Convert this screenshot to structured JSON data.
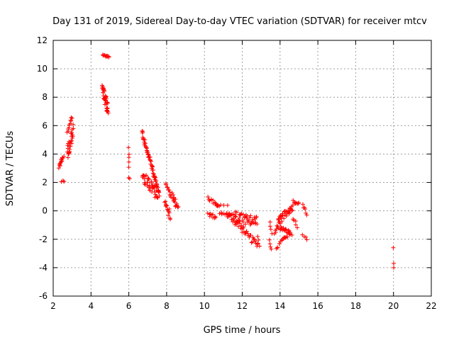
{
  "chart_data": {
    "type": "scatter",
    "title": "Day 131 of 2019, Sidereal Day-to-day VTEC variation (SDTVAR) for receiver mtcv",
    "xlabel": "GPS time / hours",
    "ylabel": "SDTVAR / TECUs",
    "xlim": [
      2,
      22
    ],
    "ylim": [
      -6,
      12
    ],
    "xticks": [
      2,
      4,
      6,
      8,
      10,
      12,
      14,
      16,
      18,
      20,
      22
    ],
    "yticks": [
      -6,
      -4,
      -2,
      0,
      2,
      4,
      6,
      8,
      10,
      12
    ],
    "grid": true,
    "marker": "+",
    "color": "#ff0000",
    "series": [
      {
        "name": "SDTVAR",
        "segments": [
          {
            "x0": 2.3,
            "x1": 2.55,
            "y0": 3.1,
            "y1": 3.8,
            "n": 14,
            "j": 0.15
          },
          {
            "x0": 2.45,
            "x1": 2.55,
            "y0": 2.1,
            "y1": 2.1,
            "n": 3,
            "j": 0.05
          },
          {
            "x0": 2.75,
            "x1": 3.05,
            "y0": 4.0,
            "y1": 5.6,
            "n": 28,
            "j": 0.5
          },
          {
            "x0": 2.75,
            "x1": 3.0,
            "y0": 5.6,
            "y1": 6.6,
            "n": 10,
            "j": 0.1
          },
          {
            "x0": 4.65,
            "x1": 4.95,
            "y0": 11.0,
            "y1": 10.8,
            "n": 12,
            "j": 0.05
          },
          {
            "x0": 4.6,
            "x1": 4.9,
            "y0": 8.7,
            "y1": 7.0,
            "n": 38,
            "j": 0.4
          },
          {
            "x0": 6.0,
            "x1": 6.0,
            "y0": 4.4,
            "y1": 3.0,
            "n": 5,
            "j": 0.1
          },
          {
            "x0": 6.0,
            "x1": 6.05,
            "y0": 2.3,
            "y1": 2.3,
            "n": 2,
            "j": 0.05
          },
          {
            "x0": 6.7,
            "x1": 7.6,
            "y0": 5.5,
            "y1": 1.2,
            "n": 55,
            "j": 0.2
          },
          {
            "x0": 6.7,
            "x1": 7.6,
            "y0": 2.5,
            "y1": 1.0,
            "n": 45,
            "j": 0.4
          },
          {
            "x0": 7.9,
            "x1": 8.2,
            "y0": 0.5,
            "y1": -0.3,
            "n": 14,
            "j": 0.3
          },
          {
            "x0": 7.95,
            "x1": 8.25,
            "y0": 1.9,
            "y1": 1.0,
            "n": 10,
            "j": 0.1
          },
          {
            "x0": 8.3,
            "x1": 8.6,
            "y0": 1.0,
            "y1": 0.2,
            "n": 16,
            "j": 0.3
          },
          {
            "x0": 10.2,
            "x1": 10.6,
            "y0": -0.2,
            "y1": -0.5,
            "n": 10,
            "j": 0.2
          },
          {
            "x0": 10.2,
            "x1": 10.8,
            "y0": 0.9,
            "y1": 0.3,
            "n": 14,
            "j": 0.1
          },
          {
            "x0": 10.7,
            "x1": 11.2,
            "y0": 0.4,
            "y1": 0.4,
            "n": 4,
            "j": 0.05
          },
          {
            "x0": 10.8,
            "x1": 11.6,
            "y0": -0.2,
            "y1": -0.3,
            "n": 12,
            "j": 0.1
          },
          {
            "x0": 11.2,
            "x1": 12.8,
            "y0": -0.2,
            "y1": -2.4,
            "n": 45,
            "j": 0.25
          },
          {
            "x0": 11.6,
            "x1": 12.8,
            "y0": -0.4,
            "y1": -0.8,
            "n": 40,
            "j": 0.4
          },
          {
            "x0": 12.8,
            "x1": 12.9,
            "y0": -1.8,
            "y1": -2.5,
            "n": 4,
            "j": 0.05
          },
          {
            "x0": 13.45,
            "x1": 13.55,
            "y0": -0.8,
            "y1": -1.6,
            "n": 4,
            "j": 0.05
          },
          {
            "x0": 13.45,
            "x1": 13.55,
            "y0": -2.1,
            "y1": -2.7,
            "n": 4,
            "j": 0.05
          },
          {
            "x0": 13.7,
            "x1": 14.1,
            "y0": -1.6,
            "y1": -0.6,
            "n": 12,
            "j": 0.2
          },
          {
            "x0": 13.8,
            "x1": 14.5,
            "y0": -2.6,
            "y1": -1.6,
            "n": 16,
            "j": 0.15
          },
          {
            "x0": 13.9,
            "x1": 14.7,
            "y0": -0.7,
            "y1": 0.3,
            "n": 30,
            "j": 0.25
          },
          {
            "x0": 14.0,
            "x1": 14.6,
            "y0": -1.2,
            "y1": -1.6,
            "n": 18,
            "j": 0.12
          },
          {
            "x0": 14.7,
            "x1": 15.0,
            "y0": 0.7,
            "y1": 0.5,
            "n": 8,
            "j": 0.1
          },
          {
            "x0": 14.7,
            "x1": 14.9,
            "y0": -0.5,
            "y1": -1.1,
            "n": 5,
            "j": 0.1
          },
          {
            "x0": 15.2,
            "x1": 15.4,
            "y0": 0.4,
            "y1": -0.2,
            "n": 6,
            "j": 0.1
          },
          {
            "x0": 15.2,
            "x1": 15.4,
            "y0": -1.7,
            "y1": -2.0,
            "n": 4,
            "j": 0.05
          },
          {
            "x0": 20.0,
            "x1": 20.0,
            "y0": -2.6,
            "y1": -2.6,
            "n": 1,
            "j": 0.0
          },
          {
            "x0": 20.0,
            "x1": 20.0,
            "y0": -3.7,
            "y1": -4.0,
            "n": 2,
            "j": 0.0
          }
        ]
      }
    ]
  }
}
